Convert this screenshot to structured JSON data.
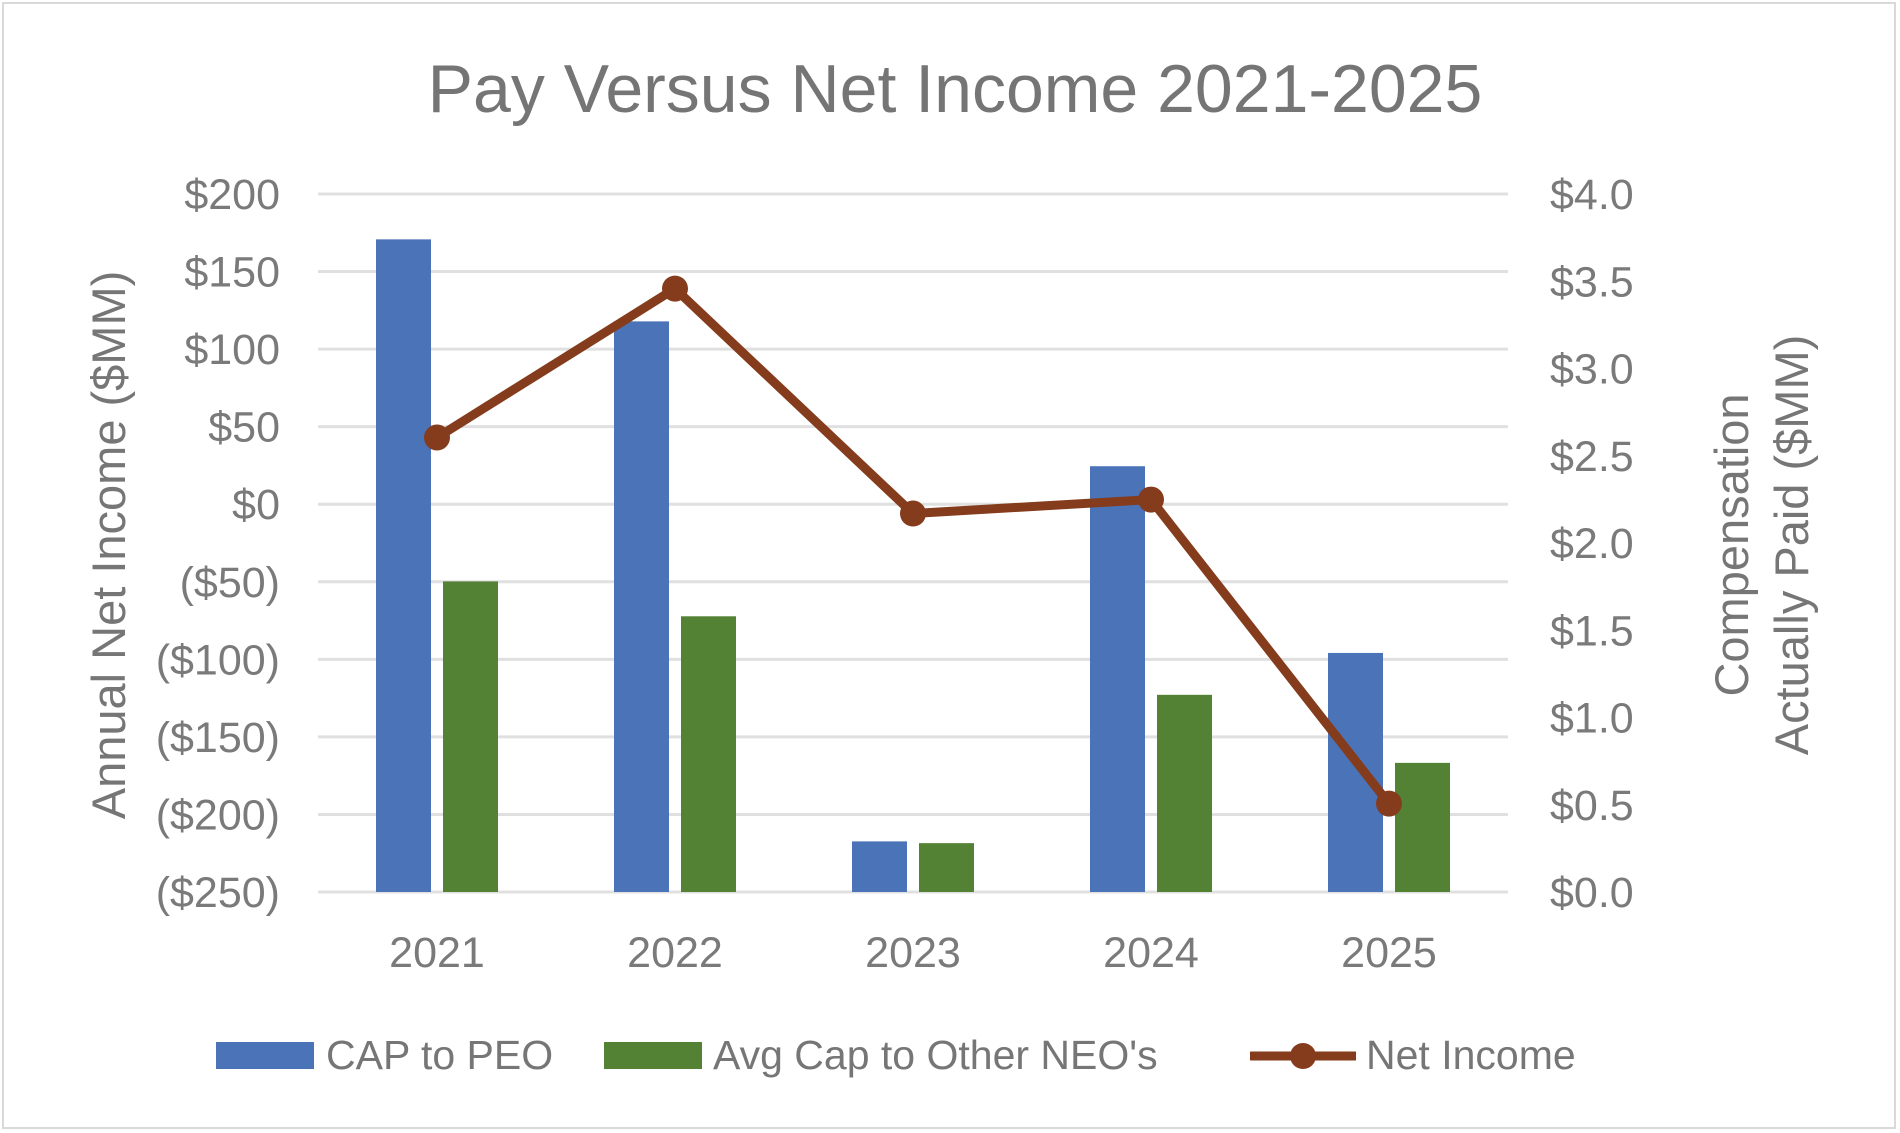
{
  "chart_data": {
    "type": "bar",
    "title": "Pay Versus Net Income 2021-2025",
    "categories": [
      "2021",
      "2022",
      "2023",
      "2024",
      "2025"
    ],
    "left_axis": {
      "label": "Annual Net Income ($MM)",
      "range": [
        -250,
        200
      ],
      "ticks": [
        200,
        150,
        100,
        50,
        0,
        -50,
        -100,
        -150,
        -200,
        -250
      ],
      "tick_labels": [
        "$200",
        "$150",
        "$100",
        "$50",
        "$0",
        "($50)",
        "($100)",
        "($150)",
        "($200)",
        "($250)"
      ],
      "negative_color": "#e0202a",
      "positive_color": "#7a7a7a"
    },
    "right_axis": {
      "label_line1": "Compensation",
      "label_line2": "Actually Paid ($MM)",
      "range": [
        0,
        4
      ],
      "ticks": [
        4.0,
        3.5,
        3.0,
        2.5,
        2.0,
        1.5,
        1.0,
        0.5,
        0.0
      ],
      "tick_labels": [
        "$4.0",
        "$3.5",
        "$3.0",
        "$2.5",
        "$2.0",
        "$1.5",
        "$1.0",
        "$0.5",
        "$0.0"
      ]
    },
    "series": [
      {
        "name": "CAP to PEO",
        "type": "bar",
        "axis": "right",
        "color": "#4a73b8",
        "values": [
          3.74,
          3.27,
          0.29,
          2.44,
          1.37
        ]
      },
      {
        "name": "Avg Cap to Other NEO's",
        "type": "bar",
        "axis": "right",
        "color": "#548235",
        "values": [
          1.78,
          1.58,
          0.28,
          1.13,
          0.74
        ]
      },
      {
        "name": "Net Income",
        "type": "line",
        "axis": "left",
        "color": "#843c1c",
        "values": [
          43,
          139,
          -6,
          3,
          -193
        ]
      }
    ],
    "grid": true,
    "legend_position": "bottom"
  }
}
